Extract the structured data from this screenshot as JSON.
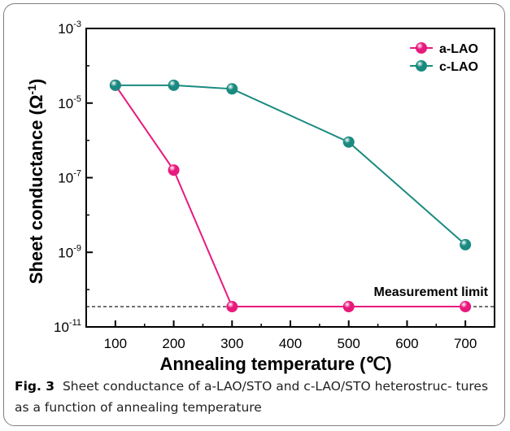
{
  "figure": {
    "caption_label": "Fig. 3",
    "caption_text": "Sheet conductance of a-LAO/STO and c-LAO/STO heterostruc- tures as a function of annealing temperature"
  },
  "chart_data": {
    "type": "line",
    "xlabel": "Annealing temperature (℃)",
    "ylabel": "Sheet conductance (Ω",
    "ylabel_sup": "-1",
    "ylabel_end": ")",
    "xlim": [
      50,
      750
    ],
    "ylim": [
      1e-11,
      0.001
    ],
    "yscale": "log",
    "xticks": [
      100,
      200,
      300,
      400,
      500,
      600,
      700
    ],
    "yticks": [
      {
        "base": "10",
        "exp": "-3",
        "value": 0.001
      },
      {
        "base": "10",
        "exp": "-5",
        "value": 1e-05
      },
      {
        "base": "10",
        "exp": "-7",
        "value": 1e-07
      },
      {
        "base": "10",
        "exp": "-9",
        "value": 1e-09
      },
      {
        "base": "10",
        "exp": "-11",
        "value": 1e-11
      }
    ],
    "series": [
      {
        "name": "a-LAO",
        "color": "#e8197d",
        "x": [
          100,
          200,
          300,
          500,
          700
        ],
        "y": [
          3e-05,
          1.6e-07,
          3.5e-11,
          3.5e-11,
          3.5e-11
        ]
      },
      {
        "name": "c-LAO",
        "color": "#1a8a80",
        "x": [
          100,
          200,
          300,
          500,
          700
        ],
        "y": [
          3e-05,
          3e-05,
          2.4e-05,
          9e-07,
          1.6e-09
        ]
      }
    ],
    "reference_line": {
      "label": "Measurement limit",
      "y": 3.5e-11,
      "style": "dashed"
    },
    "legend_position": "top-right",
    "grid": false
  }
}
